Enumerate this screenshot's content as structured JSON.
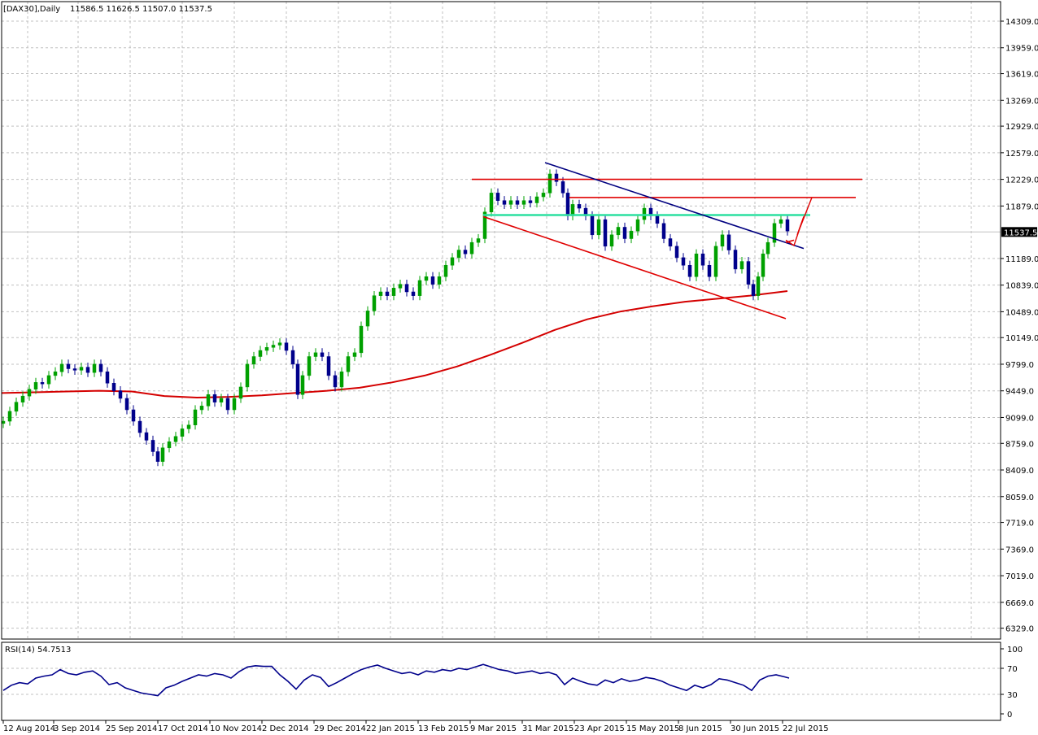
{
  "header": {
    "symbol_label": "[DAX30],Daily",
    "ohlc_label": "11586.5 11626.5 11507.0 11537.5"
  },
  "rsi_header": {
    "label": "RSI(14) 54.7513"
  },
  "chart_data": {
    "type": "candlestick",
    "title": "[DAX30],Daily",
    "ohlc_last": {
      "open": 11586.5,
      "high": 11626.5,
      "low": 11507.0,
      "close": 11537.5
    },
    "last_price": 11537.5,
    "last_price_label": "11537.5",
    "y_ticks": [
      "14309.0",
      "13959.0",
      "13619.0",
      "13269.0",
      "12929.0",
      "12579.0",
      "12229.0",
      "11879.0",
      "11189.0",
      "10839.0",
      "10489.0",
      "10149.0",
      "9799.0",
      "9449.0",
      "9099.0",
      "8759.0",
      "8409.0",
      "8059.0",
      "7719.0",
      "7369.0",
      "7019.0",
      "6669.0",
      "6329.0"
    ],
    "y_range": [
      6329,
      14309
    ],
    "x_ticks": [
      "12 Aug 2014",
      "3 Sep 2014",
      "25 Sep 2014",
      "17 Oct 2014",
      "10 Nov 2014",
      "2 Dec 2014",
      "29 Dec 2014",
      "22 Jan 2015",
      "13 Feb 2015",
      "9 Mar 2015",
      "31 Mar 2015",
      "23 Apr 2015",
      "15 May 2015",
      "8 Jun 2015",
      "30 Jun 2015",
      "22 Jul 2015"
    ],
    "grid": true,
    "colors": {
      "bull_candle": "#00a000",
      "bear_candle": "#00008b",
      "ma_line": "#d40000",
      "trendline_red": "#e00000",
      "trendline_blue": "#000080",
      "resistance_green": "#2ce0a0",
      "rsi_line": "#00008b"
    },
    "close_path": [
      [
        0,
        9050
      ],
      [
        8,
        9180
      ],
      [
        16,
        9300
      ],
      [
        24,
        9380
      ],
      [
        32,
        9470
      ],
      [
        40,
        9560
      ],
      [
        48,
        9540
      ],
      [
        56,
        9650
      ],
      [
        64,
        9700
      ],
      [
        72,
        9800
      ],
      [
        80,
        9740
      ],
      [
        88,
        9720
      ],
      [
        96,
        9760
      ],
      [
        104,
        9690
      ],
      [
        112,
        9800
      ],
      [
        120,
        9700
      ],
      [
        128,
        9550
      ],
      [
        136,
        9450
      ],
      [
        144,
        9350
      ],
      [
        152,
        9200
      ],
      [
        160,
        9050
      ],
      [
        168,
        8900
      ],
      [
        176,
        8800
      ],
      [
        184,
        8650
      ],
      [
        190,
        8520
      ],
      [
        196,
        8700
      ],
      [
        204,
        8780
      ],
      [
        212,
        8850
      ],
      [
        220,
        8950
      ],
      [
        228,
        9000
      ],
      [
        236,
        9200
      ],
      [
        244,
        9250
      ],
      [
        252,
        9400
      ],
      [
        260,
        9300
      ],
      [
        268,
        9350
      ],
      [
        276,
        9200
      ],
      [
        284,
        9350
      ],
      [
        292,
        9500
      ],
      [
        300,
        9800
      ],
      [
        308,
        9900
      ],
      [
        316,
        9980
      ],
      [
        324,
        10020
      ],
      [
        332,
        10050
      ],
      [
        340,
        10080
      ],
      [
        348,
        9980
      ],
      [
        356,
        9800
      ],
      [
        362,
        9400
      ],
      [
        368,
        9650
      ],
      [
        376,
        9900
      ],
      [
        384,
        9950
      ],
      [
        392,
        9900
      ],
      [
        400,
        9650
      ],
      [
        408,
        9500
      ],
      [
        416,
        9700
      ],
      [
        424,
        9900
      ],
      [
        432,
        9950
      ],
      [
        440,
        10300
      ],
      [
        448,
        10500
      ],
      [
        456,
        10700
      ],
      [
        464,
        10750
      ],
      [
        472,
        10700
      ],
      [
        480,
        10800
      ],
      [
        488,
        10850
      ],
      [
        496,
        10750
      ],
      [
        504,
        10700
      ],
      [
        512,
        10900
      ],
      [
        520,
        10950
      ],
      [
        528,
        10850
      ],
      [
        536,
        10950
      ],
      [
        544,
        11100
      ],
      [
        552,
        11200
      ],
      [
        560,
        11300
      ],
      [
        568,
        11250
      ],
      [
        576,
        11400
      ],
      [
        584,
        11450
      ],
      [
        592,
        11800
      ],
      [
        600,
        12050
      ],
      [
        608,
        11950
      ],
      [
        616,
        11900
      ],
      [
        624,
        11950
      ],
      [
        632,
        11900
      ],
      [
        640,
        11950
      ],
      [
        648,
        11920
      ],
      [
        656,
        12000
      ],
      [
        664,
        12050
      ],
      [
        672,
        12300
      ],
      [
        680,
        12200
      ],
      [
        688,
        12050
      ],
      [
        694,
        11750
      ],
      [
        700,
        11900
      ],
      [
        708,
        11850
      ],
      [
        716,
        11750
      ],
      [
        724,
        11500
      ],
      [
        732,
        11700
      ],
      [
        740,
        11350
      ],
      [
        748,
        11500
      ],
      [
        756,
        11600
      ],
      [
        764,
        11450
      ],
      [
        772,
        11550
      ],
      [
        780,
        11700
      ],
      [
        788,
        11850
      ],
      [
        796,
        11750
      ],
      [
        804,
        11650
      ],
      [
        812,
        11450
      ],
      [
        820,
        11350
      ],
      [
        828,
        11200
      ],
      [
        836,
        11100
      ],
      [
        844,
        10950
      ],
      [
        852,
        11250
      ],
      [
        860,
        11100
      ],
      [
        868,
        10950
      ],
      [
        876,
        11350
      ],
      [
        884,
        11500
      ],
      [
        892,
        11300
      ],
      [
        900,
        11050
      ],
      [
        908,
        11150
      ],
      [
        916,
        10850
      ],
      [
        922,
        10700
      ],
      [
        928,
        10950
      ],
      [
        934,
        11250
      ],
      [
        940,
        11400
      ],
      [
        948,
        11650
      ],
      [
        956,
        11700
      ],
      [
        964,
        11550
      ]
    ],
    "ma_path": [
      [
        0,
        9420
      ],
      [
        40,
        9430
      ],
      [
        80,
        9440
      ],
      [
        120,
        9450
      ],
      [
        160,
        9440
      ],
      [
        200,
        9380
      ],
      [
        240,
        9360
      ],
      [
        280,
        9370
      ],
      [
        320,
        9390
      ],
      [
        360,
        9420
      ],
      [
        400,
        9450
      ],
      [
        440,
        9490
      ],
      [
        480,
        9560
      ],
      [
        520,
        9650
      ],
      [
        560,
        9770
      ],
      [
        600,
        9920
      ],
      [
        640,
        10080
      ],
      [
        680,
        10250
      ],
      [
        720,
        10390
      ],
      [
        760,
        10490
      ],
      [
        800,
        10560
      ],
      [
        840,
        10620
      ],
      [
        880,
        10660
      ],
      [
        920,
        10700
      ],
      [
        966,
        10760
      ]
    ],
    "trendlines": [
      {
        "color": "red",
        "from": [
          580,
          12229
        ],
        "to": [
          1060,
          12229
        ]
      },
      {
        "color": "red",
        "from": [
          700,
          11990
        ],
        "to": [
          1052,
          11990
        ]
      },
      {
        "color": "green",
        "from": [
          594,
          11760
        ],
        "to": [
          996,
          11760
        ]
      },
      {
        "color": "red",
        "from": [
          594,
          11740
        ],
        "to": [
          966,
          10399
        ]
      },
      {
        "color": "navy",
        "from": [
          670,
          12449
        ],
        "to": [
          988,
          11320
        ]
      },
      {
        "color": "red",
        "from": [
          966,
          11400
        ],
        "to": [
          976,
          11430
        ]
      }
    ],
    "rsi": {
      "label": "RSI(14)",
      "value": 54.7513,
      "y_ticks": [
        "100",
        "70",
        "30",
        "0"
      ],
      "levels": [
        70,
        30
      ],
      "points": [
        [
          0,
          36
        ],
        [
          10,
          44
        ],
        [
          20,
          48
        ],
        [
          30,
          46
        ],
        [
          40,
          55
        ],
        [
          50,
          58
        ],
        [
          60,
          60
        ],
        [
          70,
          68
        ],
        [
          80,
          62
        ],
        [
          90,
          60
        ],
        [
          100,
          64
        ],
        [
          110,
          66
        ],
        [
          120,
          58
        ],
        [
          130,
          45
        ],
        [
          140,
          48
        ],
        [
          150,
          40
        ],
        [
          160,
          36
        ],
        [
          170,
          32
        ],
        [
          180,
          30
        ],
        [
          190,
          28
        ],
        [
          200,
          40
        ],
        [
          210,
          44
        ],
        [
          220,
          50
        ],
        [
          230,
          55
        ],
        [
          240,
          60
        ],
        [
          250,
          58
        ],
        [
          260,
          62
        ],
        [
          270,
          60
        ],
        [
          280,
          55
        ],
        [
          290,
          65
        ],
        [
          300,
          72
        ],
        [
          310,
          74
        ],
        [
          320,
          73
        ],
        [
          330,
          73
        ],
        [
          340,
          60
        ],
        [
          350,
          50
        ],
        [
          360,
          38
        ],
        [
          370,
          52
        ],
        [
          380,
          60
        ],
        [
          390,
          56
        ],
        [
          400,
          42
        ],
        [
          410,
          48
        ],
        [
          420,
          55
        ],
        [
          430,
          62
        ],
        [
          440,
          68
        ],
        [
          450,
          72
        ],
        [
          460,
          75
        ],
        [
          470,
          70
        ],
        [
          480,
          66
        ],
        [
          490,
          62
        ],
        [
          500,
          64
        ],
        [
          510,
          60
        ],
        [
          520,
          66
        ],
        [
          530,
          64
        ],
        [
          540,
          68
        ],
        [
          550,
          66
        ],
        [
          560,
          70
        ],
        [
          570,
          68
        ],
        [
          580,
          72
        ],
        [
          590,
          76
        ],
        [
          600,
          72
        ],
        [
          610,
          68
        ],
        [
          620,
          66
        ],
        [
          630,
          62
        ],
        [
          640,
          64
        ],
        [
          650,
          66
        ],
        [
          660,
          62
        ],
        [
          670,
          64
        ],
        [
          680,
          60
        ],
        [
          690,
          45
        ],
        [
          700,
          55
        ],
        [
          710,
          50
        ],
        [
          720,
          46
        ],
        [
          730,
          44
        ],
        [
          740,
          52
        ],
        [
          750,
          48
        ],
        [
          760,
          54
        ],
        [
          770,
          50
        ],
        [
          780,
          52
        ],
        [
          790,
          56
        ],
        [
          800,
          54
        ],
        [
          810,
          50
        ],
        [
          820,
          44
        ],
        [
          830,
          40
        ],
        [
          840,
          36
        ],
        [
          850,
          44
        ],
        [
          860,
          40
        ],
        [
          870,
          45
        ],
        [
          880,
          54
        ],
        [
          890,
          52
        ],
        [
          900,
          48
        ],
        [
          910,
          44
        ],
        [
          920,
          36
        ],
        [
          930,
          52
        ],
        [
          940,
          58
        ],
        [
          950,
          60
        ],
        [
          960,
          57
        ],
        [
          966,
          55
        ]
      ]
    }
  }
}
